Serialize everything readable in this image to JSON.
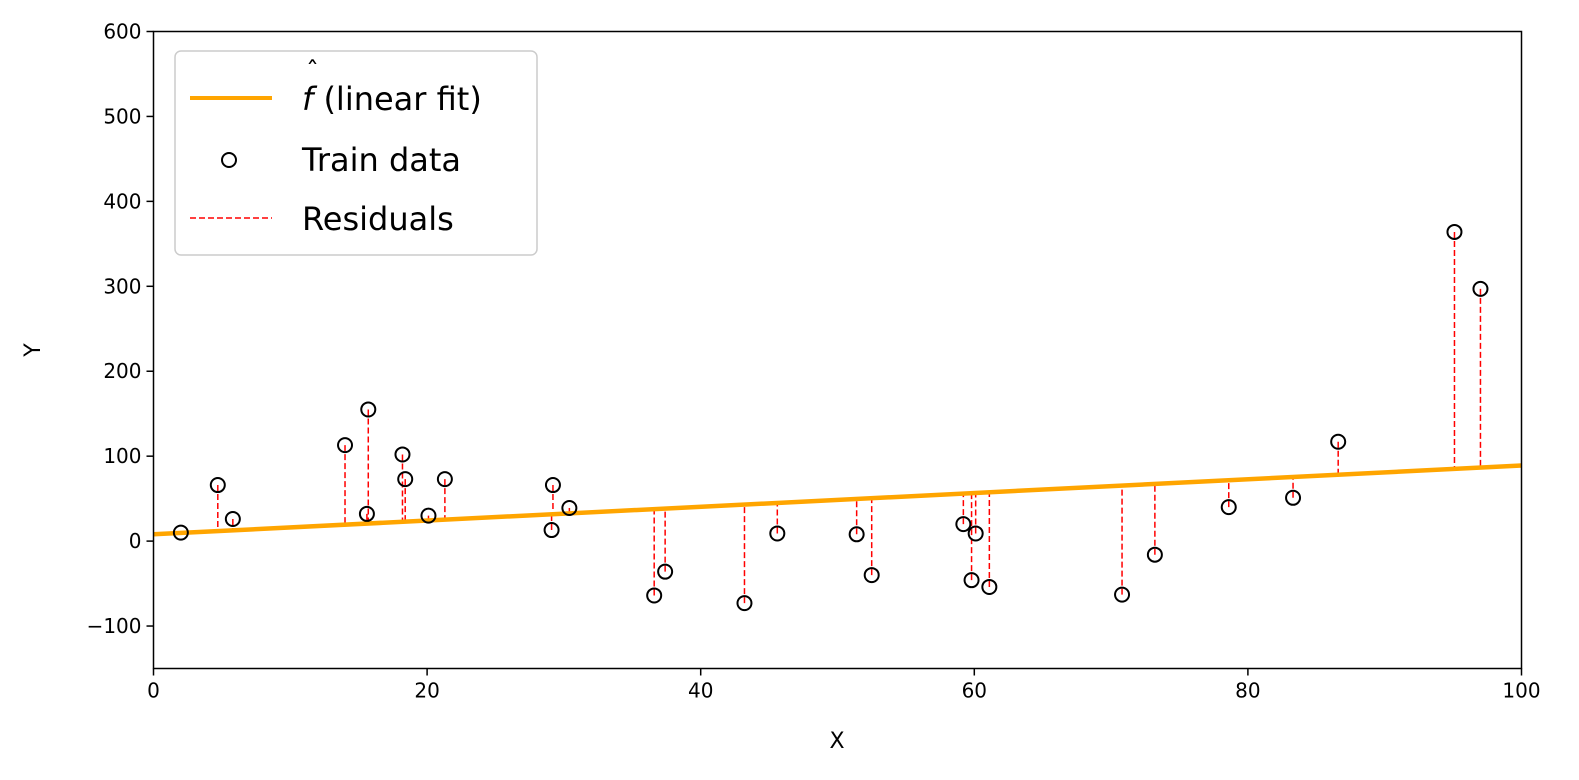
{
  "chart_data": {
    "type": "scatter",
    "xlabel": "X",
    "ylabel": "Y",
    "xlim": [
      0,
      100
    ],
    "ylim": [
      -150,
      600
    ],
    "xticks": [
      0,
      20,
      40,
      60,
      80,
      100
    ],
    "yticks": [
      -100,
      0,
      100,
      200,
      300,
      400,
      500,
      600
    ],
    "grid": false,
    "legend_position": "top-left",
    "fit": {
      "name_hat": "f",
      "name_text": " (linear fit)",
      "intercept": 8,
      "slope": 0.81,
      "color": "#FFA500"
    },
    "train": {
      "name": "Train data",
      "x": [
        2.0,
        4.7,
        5.8,
        14.0,
        15.6,
        15.7,
        18.2,
        18.4,
        20.1,
        21.3,
        29.1,
        29.2,
        30.4,
        36.6,
        37.4,
        43.2,
        45.6,
        51.4,
        52.5,
        59.2,
        59.8,
        60.1,
        61.1,
        70.8,
        73.2,
        78.6,
        83.3,
        86.6,
        95.1,
        97.0
      ],
      "y": [
        10,
        66,
        26,
        113,
        32,
        155,
        102,
        73,
        30,
        73,
        13,
        66,
        39,
        -64,
        -36,
        -73,
        9,
        8,
        -40,
        20,
        -46,
        9,
        -54,
        -63,
        -16,
        40,
        51,
        117,
        364,
        297
      ],
      "color": "#000000"
    },
    "residuals": {
      "name": "Residuals",
      "color": "#FF0000"
    }
  }
}
